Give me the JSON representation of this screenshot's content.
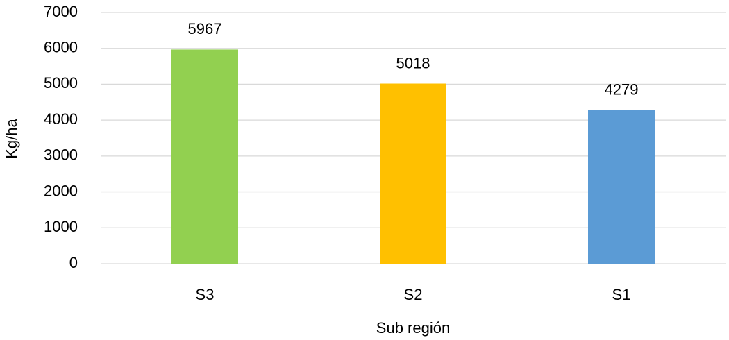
{
  "chart_data": {
    "type": "bar",
    "x_label": "Sub región",
    "y_label": "Kg/ha",
    "categories": [
      "S3",
      "S2",
      "S1"
    ],
    "values": [
      5967,
      5018,
      4279
    ],
    "colors": [
      "#92d050",
      "#ffc000",
      "#5b9bd5"
    ],
    "ylim": [
      0,
      7000
    ],
    "yticks": [
      0,
      1000,
      2000,
      3000,
      4000,
      5000,
      6000,
      7000
    ],
    "grid": true,
    "data_labels": true
  }
}
